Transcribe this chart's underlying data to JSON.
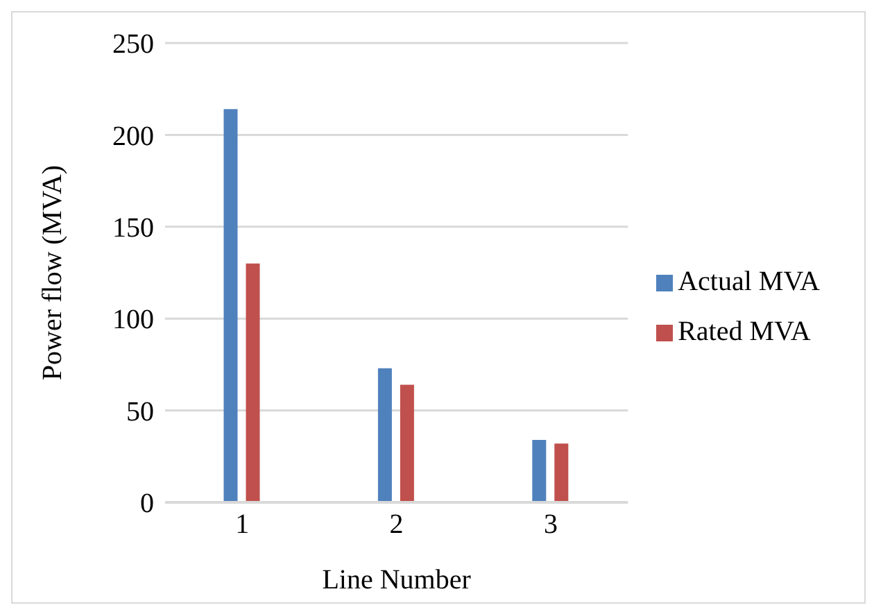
{
  "chart_data": {
    "type": "bar",
    "xlabel": "Line Number",
    "ylabel": "Power flow (MVA)",
    "categories": [
      "1",
      "2",
      "3"
    ],
    "series": [
      {
        "name": "Actual MVA",
        "color": "#4f81bd",
        "values": [
          214,
          73,
          34
        ]
      },
      {
        "name": "Rated MVA",
        "color": "#c0504d",
        "values": [
          130,
          64,
          32
        ]
      }
    ],
    "ylim": [
      0,
      250
    ],
    "yticks": [
      0,
      50,
      100,
      150,
      200,
      250
    ],
    "grid": "y",
    "legend": "right"
  }
}
